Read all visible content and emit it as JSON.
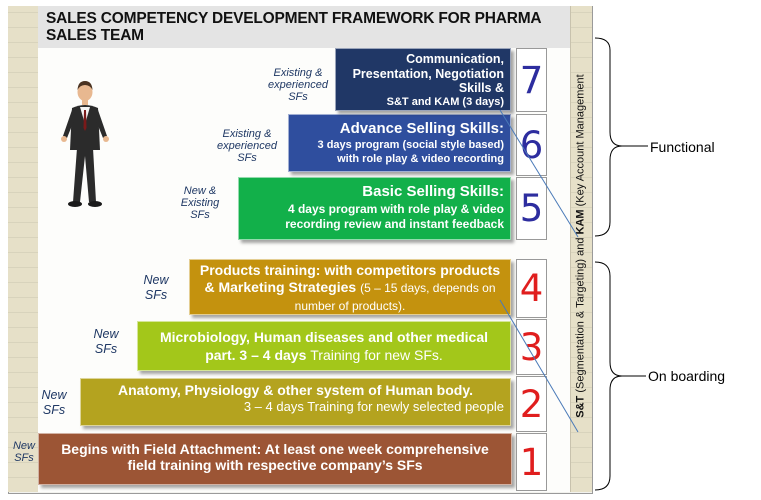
{
  "title": "SALES COMPETENCY DEVELOPMENT FRAMEWORK FOR PHARMA SALES TEAM",
  "steps": [
    {
      "number": "1",
      "num_color": "red",
      "head": "Begins with Field Attachment:",
      "body": "At least one week comprehensive field training with respective company’s SFs",
      "side": "New SFs"
    },
    {
      "number": "2",
      "num_color": "red",
      "head": "Anatomy, Physiology & other system of Human body.",
      "body": "3 – 4 days Training for newly selected people",
      "side": "New SFs"
    },
    {
      "number": "3",
      "num_color": "red",
      "head": "Microbiology, Human diseases and other medical part. 3 – 4 days",
      "body": "Training for new SFs.",
      "side": "New SFs"
    },
    {
      "number": "4",
      "num_color": "red",
      "head": "Products training:",
      "head2": "with competitors products & Marketing Strategies",
      "body": "(5 – 15 days, depends on number of products).",
      "side": "New SFs"
    },
    {
      "number": "5",
      "num_color": "blue",
      "head": "Basic Selling Skills:",
      "body": "4 days program with role play & video recording review and instant feedback",
      "side": "New & Existing SFs"
    },
    {
      "number": "6",
      "num_color": "blue",
      "head": "Advance Selling Skills:",
      "body": "3 days program (social style based) with role play & video recording",
      "side": "Existing & experienced SFs"
    },
    {
      "number": "7",
      "num_color": "blue",
      "head": "Communication, Presentation, Negotiation Skills &",
      "body": "S&T and KAM (3 days)",
      "side": "Existing & experienced SFs"
    }
  ],
  "vertical": {
    "part1": "S&T",
    "part2": "(Segmentation & Targeting) and",
    "part3": "KAM",
    "part4": "(Key Account Management"
  },
  "brackets": {
    "top": "Functional",
    "bottom": "On boarding"
  },
  "colors": {
    "step1": "#9c5535",
    "step2": "#b4a31f",
    "step3": "#a3c71a",
    "step4": "#c4920e",
    "step5": "#12b04a",
    "step6": "#2f4e9e",
    "step7": "#203766"
  }
}
